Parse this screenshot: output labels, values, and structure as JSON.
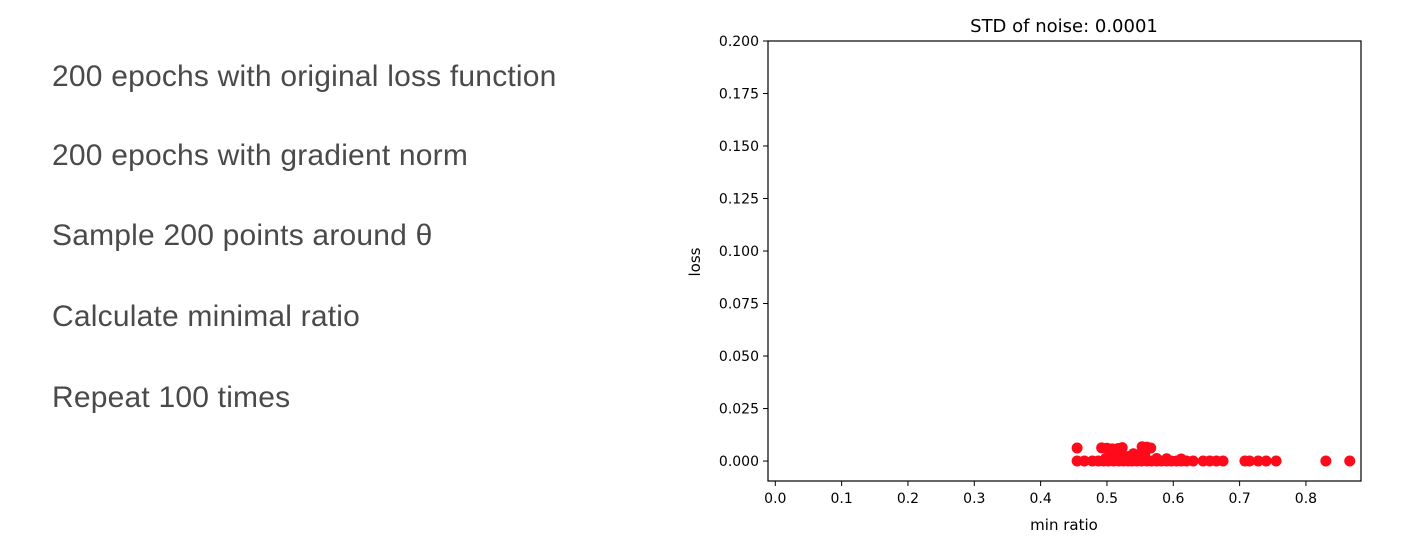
{
  "steps": [
    "200 epochs with original loss function",
    "200 epochs with gradient norm",
    "Sample 200 points around θ",
    "Calculate minimal ratio",
    "Repeat 100 times"
  ],
  "chart_data": {
    "type": "scatter",
    "title": "STD of noise: 0.0001",
    "xlabel": "min ratio",
    "ylabel": "loss",
    "xlim": [
      -0.011,
      0.883
    ],
    "ylim": [
      -0.0095,
      0.2
    ],
    "xticks": [
      0.0,
      0.1,
      0.2,
      0.3,
      0.4,
      0.5,
      0.6,
      0.7,
      0.8
    ],
    "xtick_labels": [
      "0.0",
      "0.1",
      "0.2",
      "0.3",
      "0.4",
      "0.5",
      "0.6",
      "0.7",
      "0.8"
    ],
    "yticks": [
      0.0,
      0.025,
      0.05,
      0.075,
      0.1,
      0.125,
      0.15,
      0.175,
      0.2
    ],
    "ytick_labels": [
      "0.000",
      "0.025",
      "0.050",
      "0.075",
      "0.100",
      "0.125",
      "0.150",
      "0.175",
      "0.200"
    ],
    "grid": false,
    "marker_color": "#ff0a1a",
    "points": [
      {
        "x": 0.455,
        "y": 0.0062
      },
      {
        "x": 0.492,
        "y": 0.0063
      },
      {
        "x": 0.5,
        "y": 0.0061
      },
      {
        "x": 0.508,
        "y": 0.0058
      },
      {
        "x": 0.513,
        "y": 0.0055
      },
      {
        "x": 0.517,
        "y": 0.006
      },
      {
        "x": 0.523,
        "y": 0.0064
      },
      {
        "x": 0.505,
        "y": 0.0042
      },
      {
        "x": 0.515,
        "y": 0.0036
      },
      {
        "x": 0.512,
        "y": 0.0025
      },
      {
        "x": 0.527,
        "y": 0.0018
      },
      {
        "x": 0.533,
        "y": 0.0022
      },
      {
        "x": 0.54,
        "y": 0.0035
      },
      {
        "x": 0.548,
        "y": 0.0028
      },
      {
        "x": 0.553,
        "y": 0.0068
      },
      {
        "x": 0.56,
        "y": 0.0066
      },
      {
        "x": 0.566,
        "y": 0.0062
      },
      {
        "x": 0.557,
        "y": 0.0035
      },
      {
        "x": 0.545,
        "y": 0.0015
      },
      {
        "x": 0.52,
        "y": 0.0012
      },
      {
        "x": 0.498,
        "y": 0.0012
      },
      {
        "x": 0.575,
        "y": 0.0012
      },
      {
        "x": 0.59,
        "y": 0.0011
      },
      {
        "x": 0.612,
        "y": 0.001
      },
      {
        "x": 0.455,
        "y": 0.0
      },
      {
        "x": 0.466,
        "y": 0.0
      },
      {
        "x": 0.478,
        "y": 0.0
      },
      {
        "x": 0.487,
        "y": 0.0
      },
      {
        "x": 0.495,
        "y": 0.0
      },
      {
        "x": 0.502,
        "y": 0.0
      },
      {
        "x": 0.51,
        "y": 0.0
      },
      {
        "x": 0.518,
        "y": 0.0
      },
      {
        "x": 0.525,
        "y": 0.0
      },
      {
        "x": 0.532,
        "y": 0.0
      },
      {
        "x": 0.538,
        "y": 0.0
      },
      {
        "x": 0.545,
        "y": 0.0
      },
      {
        "x": 0.552,
        "y": 0.0
      },
      {
        "x": 0.56,
        "y": 0.0
      },
      {
        "x": 0.567,
        "y": 0.0
      },
      {
        "x": 0.575,
        "y": 0.0
      },
      {
        "x": 0.582,
        "y": 0.0
      },
      {
        "x": 0.59,
        "y": 0.0
      },
      {
        "x": 0.597,
        "y": 0.0
      },
      {
        "x": 0.605,
        "y": 0.0
      },
      {
        "x": 0.612,
        "y": 0.0
      },
      {
        "x": 0.62,
        "y": 0.0
      },
      {
        "x": 0.63,
        "y": 0.0
      },
      {
        "x": 0.645,
        "y": 0.0
      },
      {
        "x": 0.655,
        "y": 0.0
      },
      {
        "x": 0.665,
        "y": 0.0
      },
      {
        "x": 0.675,
        "y": 0.0
      },
      {
        "x": 0.708,
        "y": 0.0
      },
      {
        "x": 0.715,
        "y": 0.0
      },
      {
        "x": 0.728,
        "y": 0.0
      },
      {
        "x": 0.74,
        "y": 0.0
      },
      {
        "x": 0.755,
        "y": 0.0
      },
      {
        "x": 0.83,
        "y": 0.0
      },
      {
        "x": 0.866,
        "y": 0.0
      }
    ]
  }
}
